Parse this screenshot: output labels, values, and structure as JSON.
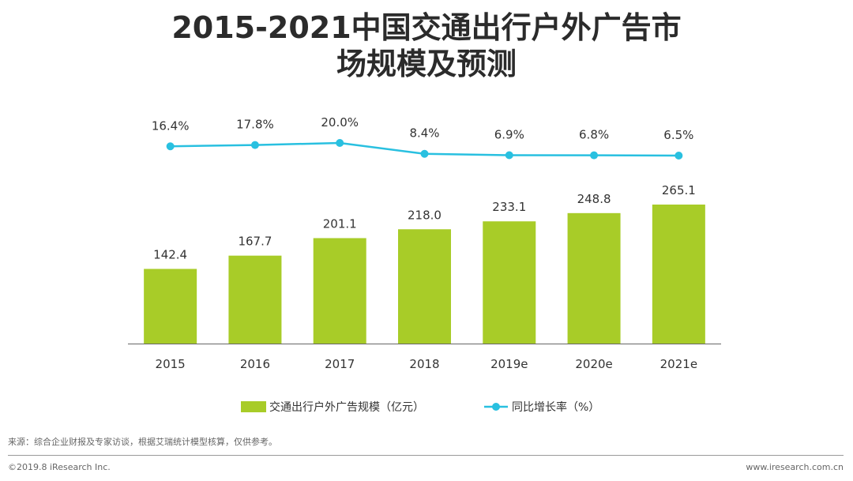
{
  "title_line1": "2015-2021中国交通出行户外广告市",
  "title_line2": "场规模及预测",
  "chart_data": {
    "type": "bar+line",
    "categories": [
      "2015",
      "2016",
      "2017",
      "2018",
      "2019e",
      "2020e",
      "2021e"
    ],
    "series": [
      {
        "name": "交通出行户外广告规模（亿元）",
        "kind": "bar",
        "color": "#a8cc28",
        "values": [
          142.4,
          167.7,
          201.1,
          218.0,
          233.1,
          248.8,
          265.1
        ],
        "labels": [
          "142.4",
          "167.7",
          "201.1",
          "218.0",
          "233.1",
          "248.8",
          "265.1"
        ]
      },
      {
        "name": "同比增长率（%）",
        "kind": "line",
        "color": "#29c0e0",
        "values": [
          16.4,
          17.8,
          20.0,
          8.4,
          6.9,
          6.8,
          6.5
        ],
        "labels": [
          "16.4%",
          "17.8%",
          "20.0%",
          "8.4%",
          "6.9%",
          "6.8%",
          "6.5%"
        ]
      }
    ],
    "bar_ylim": [
      0,
      300
    ],
    "legend_position": "bottom"
  },
  "source_note": "来源：综合企业财报及专家访谈，根据艾瑞统计模型核算，仅供参考。",
  "copyright": "©2019.8 iResearch Inc.",
  "website": "www.iresearch.com.cn"
}
